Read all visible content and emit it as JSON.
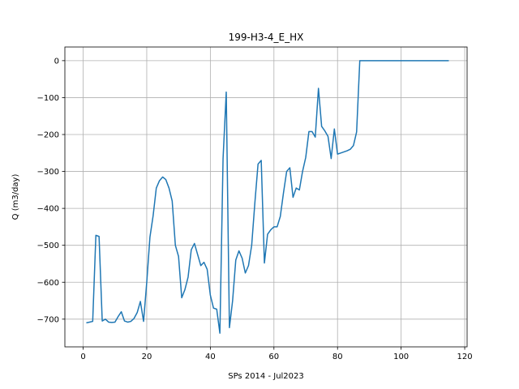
{
  "chart_data": {
    "type": "line",
    "title": "199-H3-4_E_HX",
    "xlabel": "SPs 2014 - Jul2023",
    "ylabel": "Q (m3/day)",
    "xlim": [
      -5.75,
      120.75
    ],
    "ylim": [
      -775,
      37
    ],
    "x_ticks": [
      0,
      20,
      40,
      60,
      80,
      100,
      120
    ],
    "y_ticks": [
      0,
      -100,
      -200,
      -300,
      -400,
      -500,
      -600,
      -700
    ],
    "grid": true,
    "series": [
      {
        "color": "#1f77b4",
        "x": [
          1,
          2,
          3,
          4,
          5,
          6,
          7,
          8,
          9,
          10,
          11,
          12,
          13,
          14,
          15,
          16,
          17,
          18,
          19,
          20,
          21,
          22,
          23,
          24,
          25,
          26,
          27,
          28,
          29,
          30,
          31,
          32,
          33,
          34,
          35,
          36,
          37,
          38,
          39,
          40,
          41,
          42,
          43,
          44,
          45,
          46,
          47,
          48,
          49,
          50,
          51,
          52,
          53,
          54,
          55,
          56,
          57,
          58,
          59,
          60,
          61,
          62,
          63,
          64,
          65,
          66,
          67,
          68,
          69,
          70,
          71,
          72,
          73,
          74,
          75,
          76,
          77,
          78,
          79,
          80,
          81,
          82,
          83,
          84,
          85,
          86,
          87,
          88,
          89,
          90,
          91,
          92,
          93,
          94,
          95,
          96,
          97,
          98,
          99,
          100,
          101,
          102,
          103,
          104,
          105,
          106,
          107,
          108,
          109,
          110,
          111,
          112,
          113,
          114,
          115
        ],
        "y": [
          -710,
          -708,
          -706,
          -473,
          -476,
          -705,
          -700,
          -708,
          -709,
          -708,
          -693,
          -680,
          -705,
          -708,
          -706,
          -698,
          -682,
          -652,
          -706,
          -600,
          -478,
          -420,
          -345,
          -325,
          -315,
          -322,
          -345,
          -380,
          -500,
          -530,
          -642,
          -620,
          -586,
          -512,
          -495,
          -525,
          -555,
          -546,
          -565,
          -635,
          -670,
          -673,
          -738,
          -265,
          -85,
          -723,
          -650,
          -540,
          -515,
          -535,
          -575,
          -555,
          -500,
          -385,
          -280,
          -270,
          -548,
          -470,
          -458,
          -450,
          -450,
          -422,
          -358,
          -300,
          -290,
          -370,
          -345,
          -350,
          -300,
          -262,
          -192,
          -192,
          -207,
          -75,
          -178,
          -190,
          -205,
          -265,
          -185,
          -253,
          -250,
          -247,
          -244,
          -240,
          -230,
          -193,
          0,
          0,
          0,
          0,
          0,
          0,
          0,
          0,
          0,
          0,
          0,
          0,
          0,
          0,
          0,
          0,
          0,
          0,
          0,
          0,
          0,
          0,
          0,
          0,
          0,
          0,
          0,
          0,
          0
        ]
      }
    ]
  }
}
